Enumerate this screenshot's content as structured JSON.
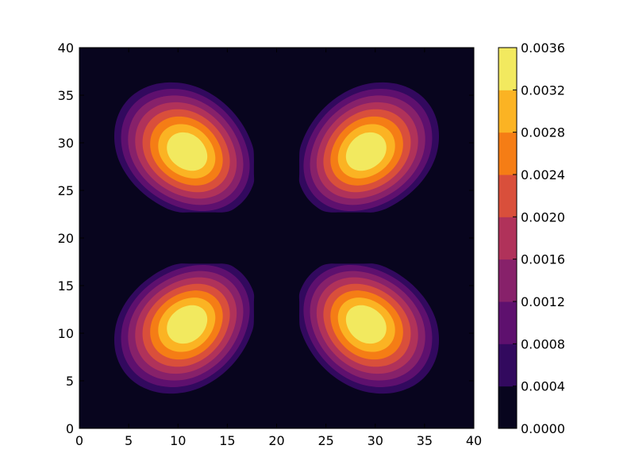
{
  "chart_data": {
    "type": "heatmap",
    "subtype": "filled-contour",
    "colormap": "inferno",
    "title": "",
    "xlabel": "",
    "ylabel": "",
    "xlim": [
      0,
      40
    ],
    "ylim": [
      0,
      40
    ],
    "x_ticks": [
      0,
      5,
      10,
      15,
      20,
      25,
      30,
      35,
      40
    ],
    "y_ticks": [
      0,
      5,
      10,
      15,
      20,
      25,
      30,
      35,
      40
    ],
    "grid": false,
    "contour_levels": [
      0.0,
      0.0004,
      0.0008,
      0.0012,
      0.0016,
      0.002,
      0.0024,
      0.0028,
      0.0032,
      0.0036
    ],
    "level_colors": [
      "#08051e",
      "#32095e",
      "#5e106e",
      "#87216a",
      "#b0325a",
      "#d94f3b",
      "#f57d15",
      "#fbb323",
      "#f2e95f"
    ],
    "peaks": [
      {
        "x": 11,
        "y": 29,
        "value": 0.0034
      },
      {
        "x": 29,
        "y": 29,
        "value": 0.0034
      },
      {
        "x": 11,
        "y": 11,
        "value": 0.0034
      },
      {
        "x": 29,
        "y": 11,
        "value": 0.0034
      }
    ],
    "colorbar": {
      "placement": "right",
      "ticks": [
        "0.0000",
        "0.0004",
        "0.0008",
        "0.0012",
        "0.0016",
        "0.0020",
        "0.0024",
        "0.0028",
        "0.0032",
        "0.0036"
      ]
    }
  }
}
